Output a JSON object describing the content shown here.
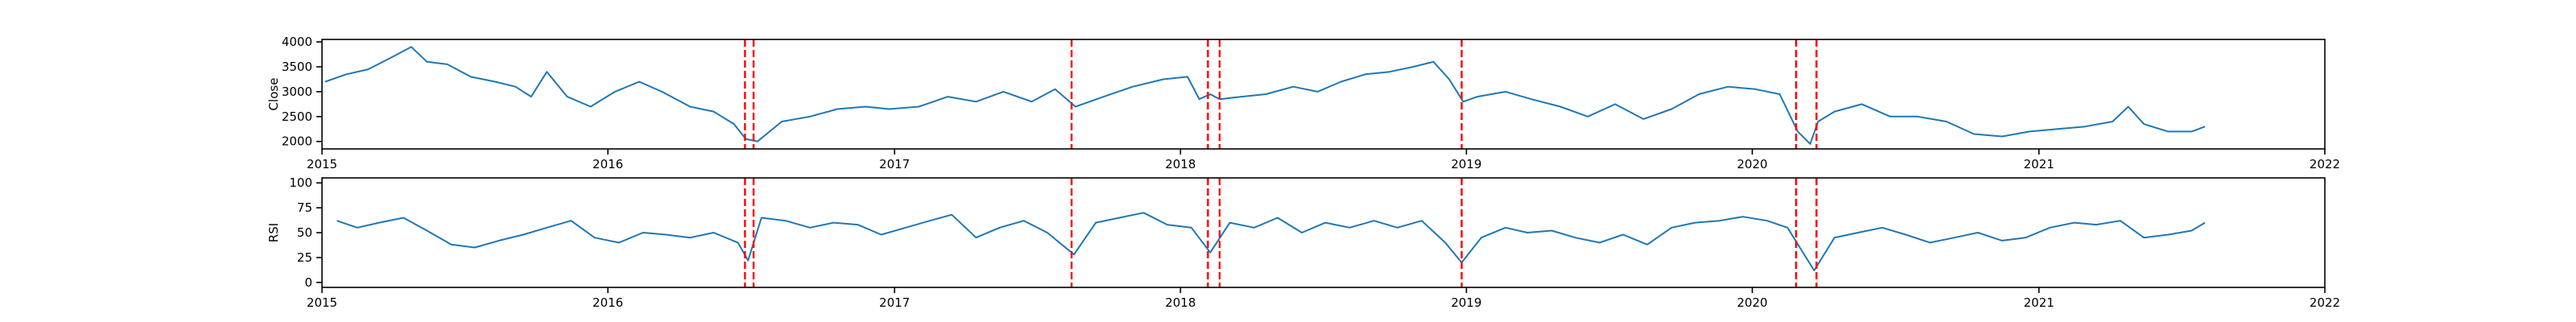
{
  "chart_data": [
    {
      "type": "line",
      "title": "",
      "xlabel": "",
      "ylabel": "Close",
      "xlim": [
        "2015-01-01",
        "2022-01-01"
      ],
      "ylim": [
        1850,
        4050
      ],
      "x_ticks": [
        "2015",
        "2016",
        "2017",
        "2018",
        "2019",
        "2020",
        "2021",
        "2022"
      ],
      "y_ticks": [
        2000,
        2500,
        3000,
        3500,
        4000
      ],
      "line_color": "#1f77b4",
      "marker_color": "#ff0000",
      "marker_style": "dashed vertical lines",
      "series": [
        {
          "x": [
            "2015-01-05",
            "2015-02-01",
            "2015-03-01",
            "2015-04-01",
            "2015-04-25",
            "2015-05-15",
            "2015-06-10",
            "2015-07-10",
            "2015-08-10",
            "2015-09-05",
            "2015-09-25",
            "2015-10-15",
            "2015-11-10",
            "2015-12-10",
            "2016-01-10",
            "2016-02-10",
            "2016-03-10",
            "2016-04-15",
            "2016-05-15",
            "2016-06-10",
            "2016-06-25",
            "2016-07-10",
            "2016-08-10",
            "2016-09-15",
            "2016-10-20",
            "2016-11-25",
            "2016-12-25",
            "2017-02-01",
            "2017-03-10",
            "2017-04-15",
            "2017-05-20",
            "2017-06-25",
            "2017-07-25",
            "2017-08-20",
            "2017-09-25",
            "2017-11-01",
            "2017-12-10",
            "2018-01-10",
            "2018-01-25",
            "2018-02-08",
            "2018-02-20",
            "2018-03-20",
            "2018-04-20",
            "2018-05-25",
            "2018-06-25",
            "2018-07-25",
            "2018-08-25",
            "2018-09-25",
            "2018-10-25",
            "2018-11-20",
            "2018-12-10",
            "2018-12-28",
            "2019-01-15",
            "2019-02-20",
            "2019-03-25",
            "2019-05-01",
            "2019-06-05",
            "2019-07-10",
            "2019-08-15",
            "2019-09-20",
            "2019-10-25",
            "2019-12-01",
            "2020-01-05",
            "2020-02-05",
            "2020-02-28",
            "2020-03-15",
            "2020-03-25",
            "2020-04-15",
            "2020-05-20",
            "2020-06-25",
            "2020-07-30",
            "2020-09-05",
            "2020-10-10",
            "2020-11-15",
            "2020-12-20",
            "2021-01-25",
            "2021-03-01",
            "2021-04-05",
            "2021-04-25",
            "2021-05-15",
            "2021-06-15",
            "2021-07-15",
            "2021-08-01"
          ],
          "values": [
            3200,
            3350,
            3450,
            3700,
            3900,
            3600,
            3550,
            3300,
            3200,
            3100,
            2900,
            3400,
            2900,
            2700,
            3000,
            3200,
            3000,
            2700,
            2600,
            2350,
            2050,
            2000,
            2400,
            2500,
            2650,
            2700,
            2650,
            2700,
            2900,
            2800,
            3000,
            2800,
            3050,
            2700,
            2900,
            3100,
            3250,
            3300,
            2850,
            2950,
            2850,
            2900,
            2950,
            3100,
            3000,
            3200,
            3350,
            3400,
            3500,
            3600,
            3250,
            2800,
            2900,
            3000,
            2850,
            2700,
            2500,
            2750,
            2450,
            2650,
            2950,
            3100,
            3050,
            2950,
            2200,
            1950,
            2400,
            2600,
            2750,
            2500,
            2500,
            2400,
            2150,
            2100,
            2200,
            2250,
            2300,
            2400,
            2700,
            2350,
            2200,
            2200,
            2300
          ]
        }
      ],
      "event_dates": [
        "2016-06-24",
        "2016-07-05",
        "2017-08-15",
        "2018-02-05",
        "2018-02-20",
        "2018-12-26",
        "2020-02-26",
        "2020-03-23"
      ]
    },
    {
      "type": "line",
      "title": "",
      "xlabel": "",
      "ylabel": "RSI",
      "xlim": [
        "2015-01-01",
        "2022-01-01"
      ],
      "ylim": [
        -5,
        105
      ],
      "x_ticks": [
        "2015",
        "2016",
        "2017",
        "2018",
        "2019",
        "2020",
        "2021",
        "2022"
      ],
      "y_ticks": [
        0,
        25,
        50,
        75,
        100
      ],
      "line_color": "#1f77b4",
      "marker_color": "#ff0000",
      "marker_style": "dashed vertical lines",
      "series": [
        {
          "x": [
            "2015-01-20",
            "2015-02-15",
            "2015-03-15",
            "2015-04-15",
            "2015-05-15",
            "2015-06-15",
            "2015-07-15",
            "2015-08-15",
            "2015-09-15",
            "2015-10-15",
            "2015-11-15",
            "2015-12-15",
            "2016-01-15",
            "2016-02-15",
            "2016-03-15",
            "2016-04-15",
            "2016-05-15",
            "2016-06-15",
            "2016-06-28",
            "2016-07-15",
            "2016-08-15",
            "2016-09-15",
            "2016-10-15",
            "2016-11-15",
            "2016-12-15",
            "2017-01-15",
            "2017-02-15",
            "2017-03-15",
            "2017-04-15",
            "2017-05-15",
            "2017-06-15",
            "2017-07-15",
            "2017-08-18",
            "2017-09-15",
            "2017-10-15",
            "2017-11-15",
            "2017-12-15",
            "2018-01-15",
            "2018-02-08",
            "2018-03-05",
            "2018-04-05",
            "2018-05-05",
            "2018-06-05",
            "2018-07-05",
            "2018-08-05",
            "2018-09-05",
            "2018-10-05",
            "2018-11-05",
            "2018-12-05",
            "2018-12-26",
            "2019-01-20",
            "2019-02-20",
            "2019-03-20",
            "2019-04-20",
            "2019-05-20",
            "2019-06-20",
            "2019-07-20",
            "2019-08-20",
            "2019-09-20",
            "2019-10-20",
            "2019-11-20",
            "2019-12-20",
            "2020-01-20",
            "2020-02-15",
            "2020-03-20",
            "2020-04-15",
            "2020-05-15",
            "2020-06-15",
            "2020-07-15",
            "2020-08-15",
            "2020-09-15",
            "2020-10-15",
            "2020-11-15",
            "2020-12-15",
            "2021-01-15",
            "2021-02-15",
            "2021-03-15",
            "2021-04-15",
            "2021-05-15",
            "2021-06-15",
            "2021-07-15",
            "2021-08-01"
          ],
          "values": [
            62,
            55,
            60,
            65,
            52,
            38,
            35,
            42,
            48,
            55,
            62,
            45,
            40,
            50,
            48,
            45,
            50,
            40,
            22,
            65,
            62,
            55,
            60,
            58,
            48,
            55,
            62,
            68,
            45,
            55,
            62,
            50,
            28,
            60,
            65,
            70,
            58,
            55,
            30,
            60,
            55,
            65,
            50,
            60,
            55,
            62,
            55,
            62,
            40,
            20,
            45,
            55,
            50,
            52,
            45,
            40,
            48,
            38,
            55,
            60,
            62,
            66,
            62,
            55,
            12,
            45,
            50,
            55,
            48,
            40,
            45,
            50,
            42,
            45,
            55,
            60,
            58,
            62,
            45,
            48,
            52,
            60
          ]
        }
      ],
      "event_dates": [
        "2016-06-24",
        "2016-07-05",
        "2017-08-15",
        "2018-02-05",
        "2018-02-20",
        "2018-12-26",
        "2020-02-26",
        "2020-03-23"
      ]
    }
  ]
}
